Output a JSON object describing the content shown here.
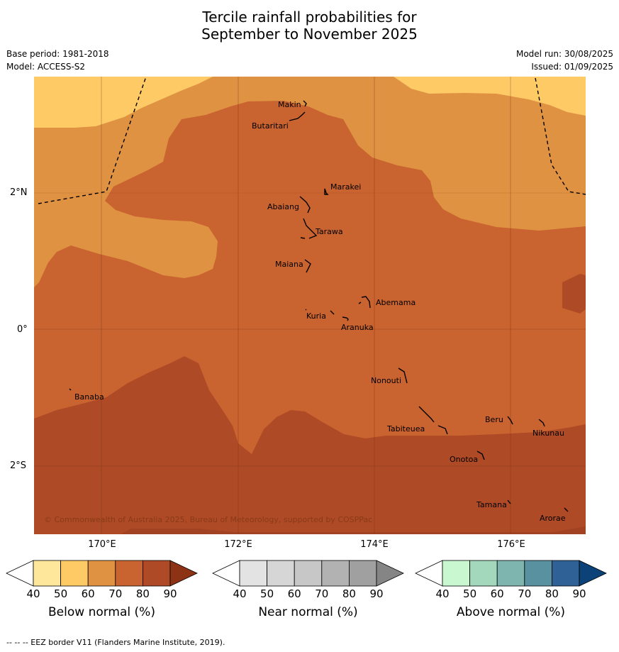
{
  "title_line1": "Tercile rainfall probabilities for",
  "title_line2": "September to November 2025",
  "base_period": "Base period: 1981-2018",
  "model": "Model: ACCESS-S2",
  "model_run": "Model run: 30/08/2025",
  "issued": "Issued: 01/09/2025",
  "map": {
    "lat_labels": [
      "2°N",
      "0°",
      "2°S"
    ],
    "lon_labels": [
      "170°E",
      "172°E",
      "174°E",
      "176°E"
    ],
    "places": [
      "Makin",
      "Butaritari",
      "Marakei",
      "Abaiang",
      "Tarawa",
      "Maiana",
      "Abemama",
      "Kuria",
      "Aranuka",
      "Nonouti",
      "Banaba",
      "Beru",
      "Nikunau",
      "Tabiteuea",
      "Onotoa",
      "Tamana",
      "Arorae"
    ],
    "copyright": "© Commonwealth of Australia 2025, Bureau of Meteorology, supported by COSPPac",
    "colors": {
      "below_40_50": "#fee79a",
      "below_50_60": "#fdca66",
      "below_60_70": "#e09243",
      "below_70_80": "#c96330",
      "below_80_90": "#ae4a26",
      "below_90_plus": "#8e3216"
    }
  },
  "colorbars": [
    {
      "label": "Below normal (%)",
      "ticks": [
        "40",
        "50",
        "60",
        "70",
        "80",
        "90"
      ],
      "colors": [
        "#ffffff",
        "#fee79a",
        "#fdca66",
        "#e09243",
        "#c96330",
        "#ae4a26",
        "#8e3216"
      ]
    },
    {
      "label": "Near normal (%)",
      "ticks": [
        "40",
        "50",
        "60",
        "70",
        "80",
        "90"
      ],
      "colors": [
        "#ffffff",
        "#e3e3e3",
        "#d6d6d6",
        "#c7c7c7",
        "#b2b2b2",
        "#a0a0a0",
        "#858585"
      ]
    },
    {
      "label": "Above normal (%)",
      "ticks": [
        "40",
        "50",
        "60",
        "70",
        "80",
        "90"
      ],
      "colors": [
        "#ffffff",
        "#c9f7cf",
        "#a3d8bc",
        "#7eb5ae",
        "#5a91a0",
        "#2f6196",
        "#0b4378"
      ]
    }
  ],
  "footer": "--  --  -- EEZ border V11 (Flanders Marine Institute, 2019)."
}
